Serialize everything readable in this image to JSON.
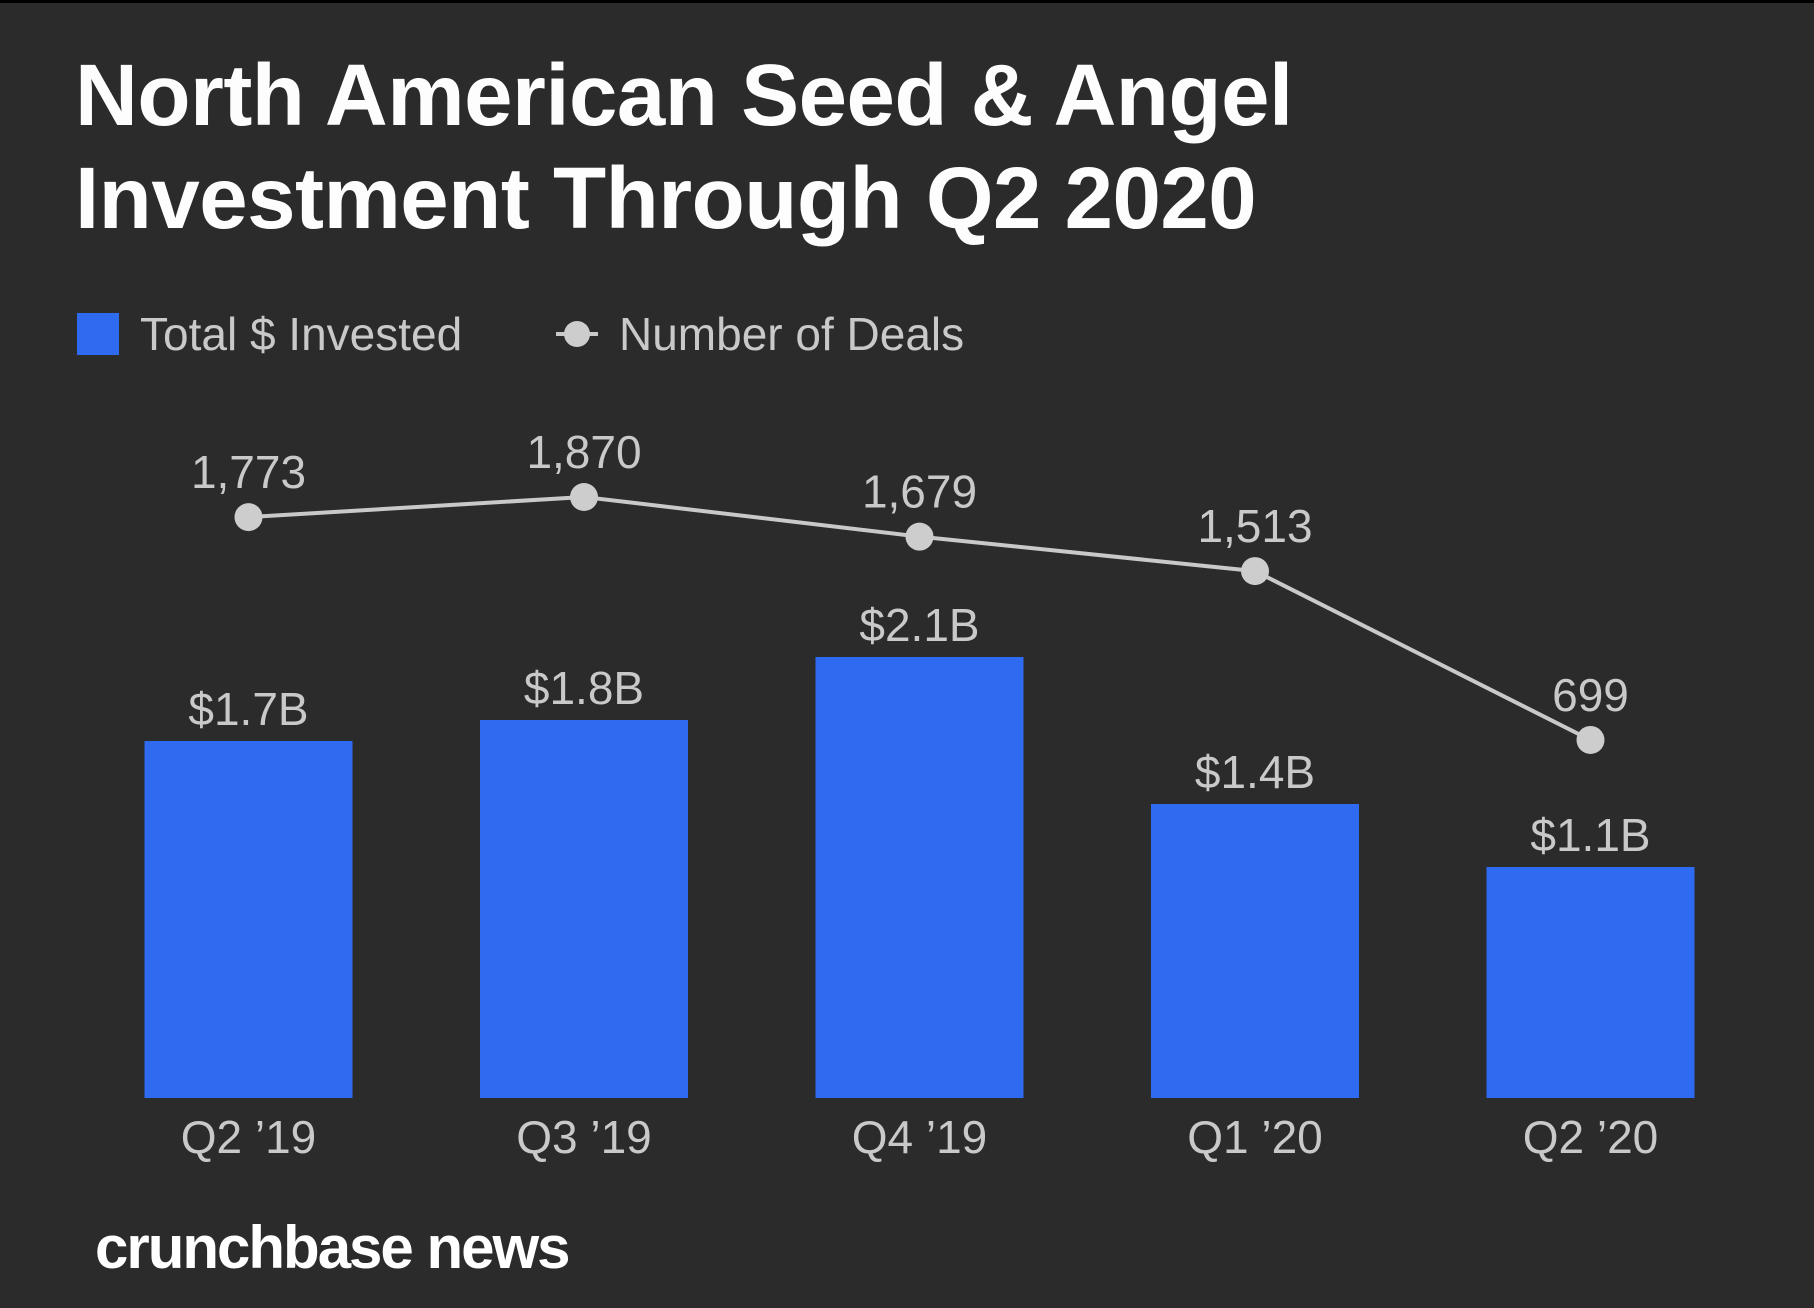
{
  "header": {
    "title_lines": [
      "North American Seed & Angel",
      "Investment Through Q2 2020"
    ]
  },
  "legend": {
    "invested_label": "Total $ Invested",
    "deals_label": "Number of Deals"
  },
  "footer": {
    "brand": "crunchbase news"
  },
  "colors": {
    "background": "#2b2b2b",
    "bar_blue": "#2e6bf1",
    "label_gray": "#c9c9c9",
    "line_gray": "#c9c9c9",
    "dot_gray": "#cdcdcd",
    "title_white": "#fdfdfd"
  },
  "chart_data": {
    "type": "bar",
    "subtype": "bar-line-combo",
    "title": "North American Seed & Angel Investment Through Q2 2020",
    "categories": [
      "Q2 ’19",
      "Q3 ’19",
      "Q4 ’19",
      "Q1 ’20",
      "Q2 ’20"
    ],
    "series": [
      {
        "name": "Total $ Invested",
        "type": "bar",
        "unit": "USD billions",
        "values": [
          1.7,
          1.8,
          2.1,
          1.4,
          1.1
        ],
        "labels": [
          "$1.7B",
          "$1.8B",
          "$2.1B",
          "$1.4B",
          "$1.1B"
        ]
      },
      {
        "name": "Number of Deals",
        "type": "line",
        "values": [
          1773,
          1870,
          1679,
          1513,
          699
        ],
        "labels": [
          "1,773",
          "1,870",
          "1,679",
          "1,513",
          "699"
        ]
      }
    ],
    "xlabel": "",
    "ylabel": "",
    "grid": false,
    "axes_hidden": true,
    "legend_position": "top-left",
    "data_labels_shown": true
  }
}
